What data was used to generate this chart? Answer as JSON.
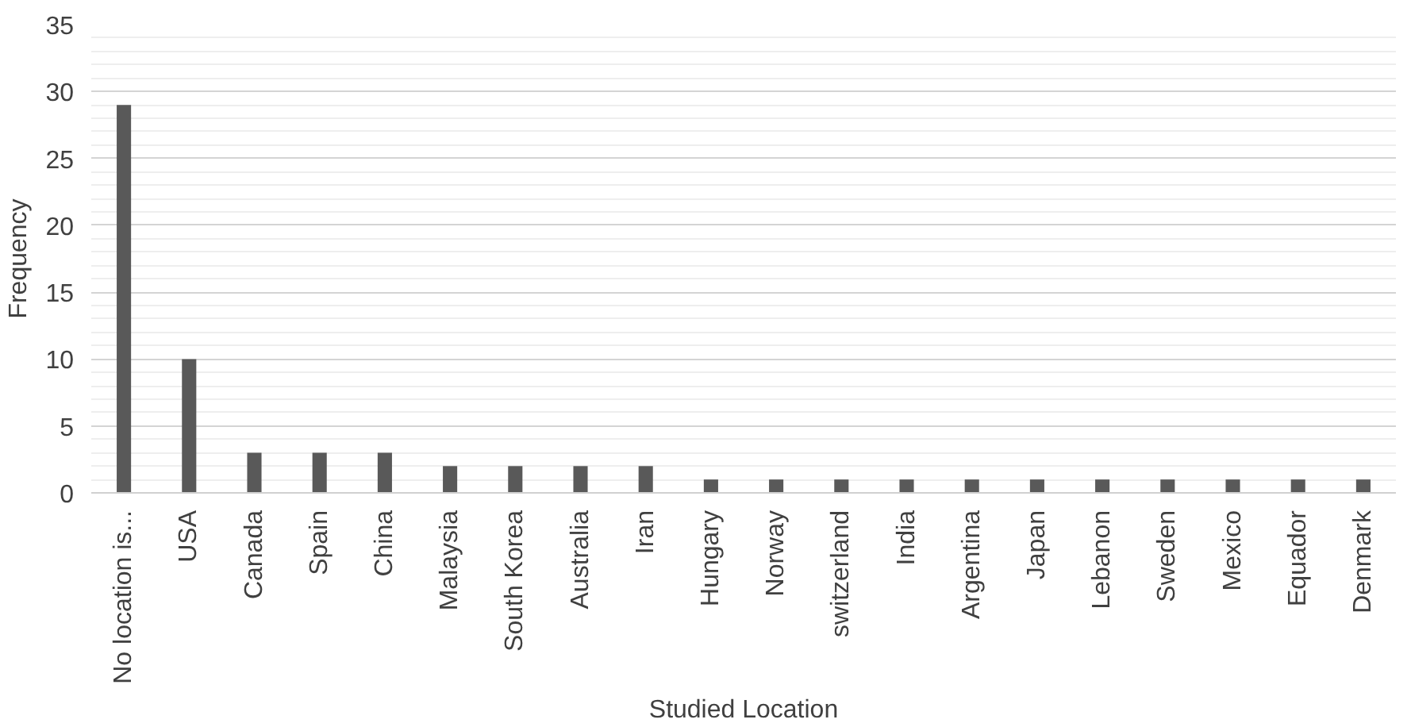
{
  "chart_data": {
    "type": "bar",
    "xlabel": "Studied Location",
    "ylabel": "Frequency",
    "categories": [
      "No location is...",
      "USA",
      "Canada",
      "Spain",
      "China",
      "Malaysia",
      "South Korea",
      "Australia",
      "Iran",
      "Hungary",
      "Norway",
      "switzerland",
      "India",
      "Argentina",
      "Japan",
      "Lebanon",
      "Sweden",
      "Mexico",
      "Equador",
      "Denmark"
    ],
    "values": [
      29,
      10,
      3,
      3,
      3,
      2,
      2,
      2,
      2,
      1,
      1,
      1,
      1,
      1,
      1,
      1,
      1,
      1,
      1,
      1
    ],
    "color": "#595959",
    "ylim": [
      0,
      35
    ],
    "yticks": [
      0,
      5,
      10,
      15,
      20,
      25,
      30,
      35
    ],
    "grid": "y"
  }
}
